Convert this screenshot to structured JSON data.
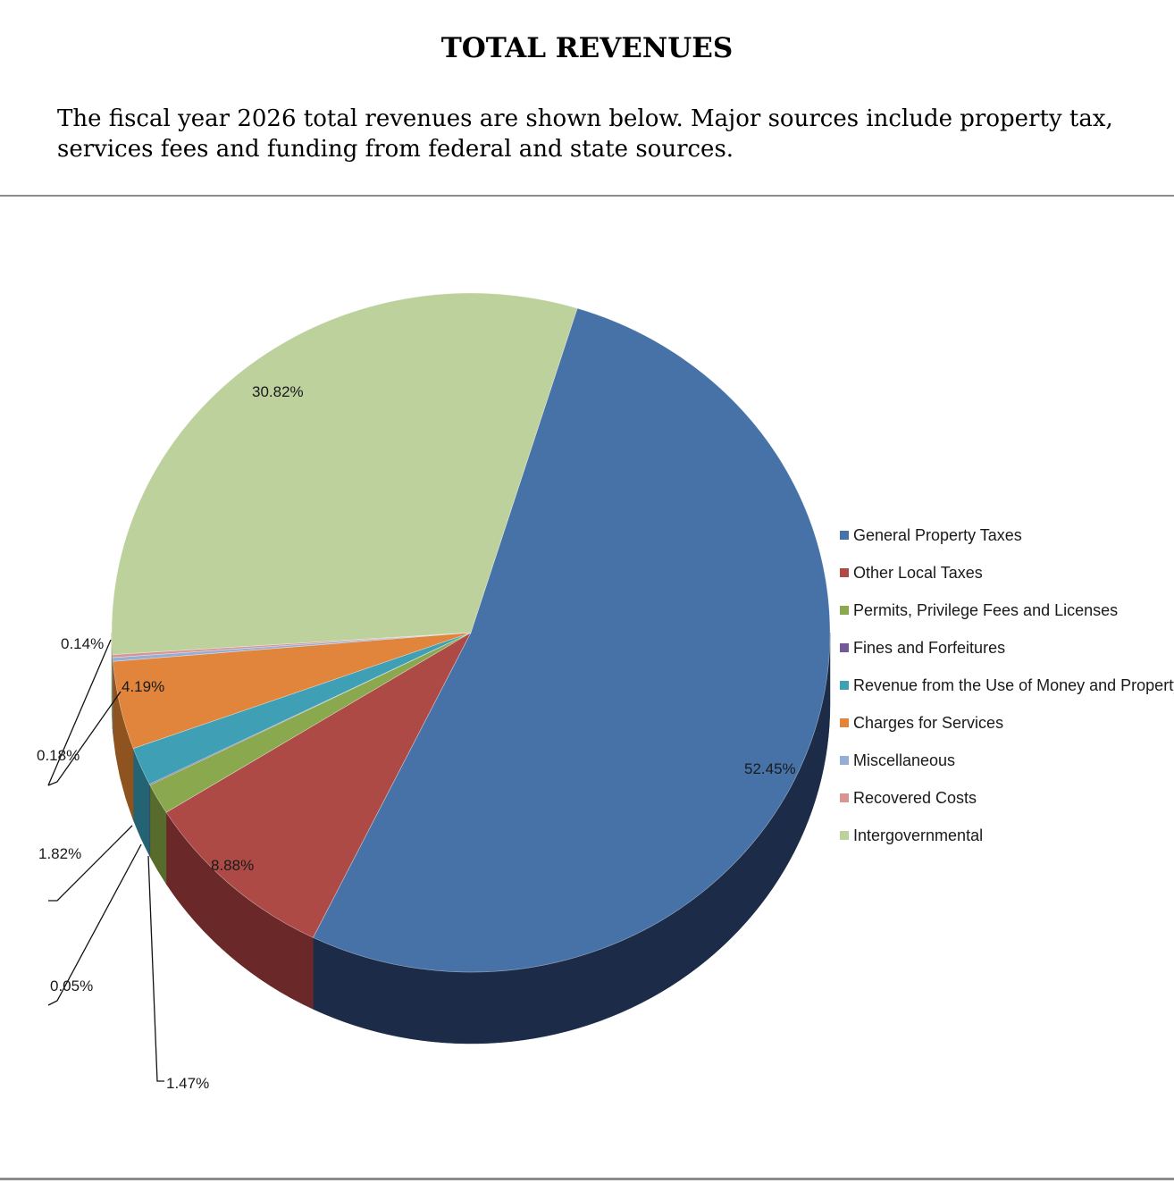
{
  "page": {
    "title": "TOTAL REVENUES",
    "intro_line1": "The fiscal year 2026 total revenues are shown below. Major sources include property tax,",
    "intro_line2": "services fees and funding from federal and state sources."
  },
  "chart_data": {
    "type": "pie",
    "style": "3d",
    "legend_position": "right",
    "title": "",
    "categories": [
      "General Property Taxes",
      "Other Local Taxes",
      "Permits, Privilege Fees and Licenses",
      "Fines and Forfeitures",
      "Revenue from the Use of Money and Property",
      "Charges for Services",
      "Miscellaneous",
      "Recovered Costs",
      "Intergovernmental"
    ],
    "values": [
      52.45,
      8.88,
      1.47,
      0.05,
      1.82,
      4.19,
      0.18,
      0.14,
      30.82
    ],
    "labels": [
      "52.45%",
      "8.88%",
      "1.47%",
      "0.05%",
      "1.82%",
      "4.19%",
      "0.18%",
      "0.14%",
      "30.82%"
    ],
    "colors": [
      "#4672A8",
      "#AD4A46",
      "#8AA84D",
      "#72599A",
      "#3FA0B5",
      "#E0853B",
      "#95AED6",
      "#D89594",
      "#BCD19C"
    ],
    "side_colors": [
      "#1C2B47",
      "#6B2828",
      "#566B2C",
      "#45355E",
      "#246373",
      "#8F531F",
      "#5D6E8A",
      "#8A5C5B",
      "#7A8A62"
    ],
    "unit": "%"
  }
}
